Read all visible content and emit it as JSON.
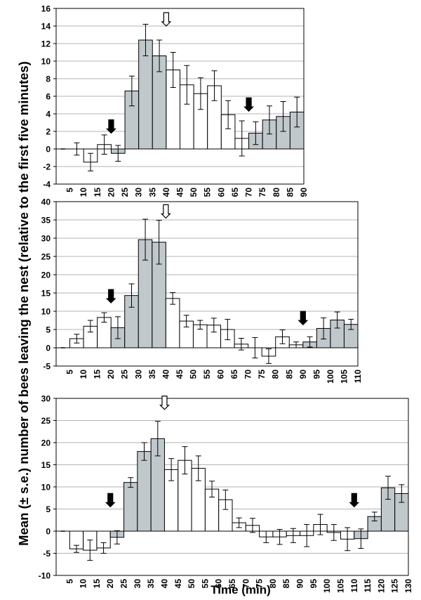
{
  "figure": {
    "ylabel": "Mean (± s.e.) number of bees leaving the nest (relative to the first five minutes)",
    "xlabel": "Time (min)"
  },
  "colors": {
    "shaded": "#c0c8cc",
    "unshaded": "#ffffff",
    "grid": "#b3b3b3",
    "bar_edge": "#000000"
  },
  "chart_data": [
    {
      "type": "bar",
      "panel": 1,
      "categories": [
        "5",
        "10",
        "15",
        "20",
        "25",
        "30",
        "35",
        "40",
        "45",
        "50",
        "55",
        "60",
        "65",
        "70",
        "75",
        "80",
        "85",
        "90"
      ],
      "values": [
        0,
        0,
        -1.5,
        0.5,
        -0.5,
        6.6,
        12.4,
        10.6,
        9.0,
        7.3,
        6.3,
        7.2,
        3.9,
        1.2,
        1.8,
        3.3,
        3.7,
        4.2
      ],
      "errors": [
        0,
        0.7,
        1.0,
        1.1,
        0.9,
        1.7,
        1.8,
        1.8,
        2.0,
        2.2,
        1.8,
        1.7,
        1.6,
        2.0,
        1.3,
        1.6,
        1.7,
        1.7
      ],
      "shaded": [
        false,
        false,
        false,
        false,
        true,
        true,
        true,
        true,
        false,
        false,
        false,
        false,
        false,
        false,
        true,
        true,
        true,
        true
      ],
      "ylim": [
        -4,
        16
      ],
      "yticks": [
        -4,
        -2,
        0,
        2,
        4,
        6,
        8,
        10,
        12,
        14,
        16
      ],
      "grid": true,
      "arrows": [
        {
          "category": "25",
          "style": "filled",
          "value": 1.8
        },
        {
          "category": "45",
          "style": "open",
          "value": 14.0
        },
        {
          "category": "75",
          "style": "filled",
          "value": 4.3
        }
      ]
    },
    {
      "type": "bar",
      "panel": 2,
      "categories": [
        "5",
        "10",
        "15",
        "20",
        "25",
        "30",
        "35",
        "40",
        "45",
        "50",
        "55",
        "60",
        "65",
        "70",
        "75",
        "80",
        "85",
        "90",
        "95",
        "100",
        "105",
        "110"
      ],
      "values": [
        0,
        2.5,
        5.9,
        8.3,
        5.5,
        14.3,
        29.6,
        28.9,
        13.5,
        7.3,
        6.3,
        6.2,
        5.0,
        1.0,
        0,
        -2.3,
        3.0,
        0.8,
        1.6,
        5.3,
        7.6,
        6.4
      ],
      "errors": [
        0,
        1.2,
        1.6,
        1.3,
        3.0,
        3.2,
        5.6,
        6.0,
        1.6,
        1.6,
        1.2,
        1.9,
        2.8,
        1.6,
        2.8,
        2.0,
        1.9,
        0.8,
        1.4,
        2.9,
        2.2,
        1.4
      ],
      "shaded": [
        false,
        false,
        false,
        false,
        true,
        true,
        true,
        true,
        false,
        false,
        false,
        false,
        false,
        false,
        false,
        false,
        false,
        false,
        true,
        true,
        true,
        true
      ],
      "ylim": [
        -5,
        40
      ],
      "yticks": [
        -5,
        0,
        5,
        10,
        15,
        20,
        25,
        30,
        35,
        40
      ],
      "grid": true,
      "arrows": [
        {
          "category": "25",
          "style": "filled",
          "value": 12.3
        },
        {
          "category": "45",
          "style": "open",
          "value": 35.5
        },
        {
          "category": "95",
          "style": "filled",
          "value": 6.3
        }
      ]
    },
    {
      "type": "bar",
      "panel": 3,
      "categories": [
        "5",
        "10",
        "15",
        "20",
        "25",
        "30",
        "35",
        "40",
        "45",
        "50",
        "55",
        "60",
        "65",
        "70",
        "75",
        "80",
        "85",
        "90",
        "95",
        "100",
        "105",
        "110",
        "115",
        "120",
        "125",
        "130"
      ],
      "values": [
        0,
        -4.0,
        -4.3,
        -3.8,
        -1.4,
        11.0,
        18.0,
        20.9,
        13.9,
        16.0,
        14.2,
        9.5,
        7.1,
        1.9,
        1.3,
        -1.3,
        -1.3,
        -1.0,
        -1.0,
        1.5,
        -0.3,
        -1.8,
        -1.7,
        3.3,
        9.8,
        8.5
      ],
      "errors": [
        0,
        0.8,
        2.3,
        1.2,
        1.5,
        1.1,
        2.0,
        3.9,
        2.5,
        3.1,
        2.8,
        1.8,
        2.2,
        1.1,
        1.6,
        1.3,
        1.7,
        1.6,
        2.5,
        2.3,
        1.8,
        2.6,
        2.2,
        1.0,
        2.6,
        2.0
      ],
      "shaded": [
        false,
        false,
        false,
        false,
        true,
        true,
        true,
        true,
        false,
        false,
        false,
        false,
        false,
        false,
        false,
        false,
        false,
        false,
        false,
        false,
        false,
        false,
        true,
        true,
        true,
        true
      ],
      "ylim": [
        -10,
        30
      ],
      "yticks": [
        -10,
        -5,
        0,
        5,
        10,
        15,
        20,
        25,
        30
      ],
      "grid": true,
      "arrows": [
        {
          "category": "25",
          "style": "filled",
          "value": 5.5
        },
        {
          "category": "45",
          "style": "open",
          "value": 27.5
        },
        {
          "category": "115",
          "style": "filled",
          "value": 5.5
        }
      ]
    }
  ]
}
